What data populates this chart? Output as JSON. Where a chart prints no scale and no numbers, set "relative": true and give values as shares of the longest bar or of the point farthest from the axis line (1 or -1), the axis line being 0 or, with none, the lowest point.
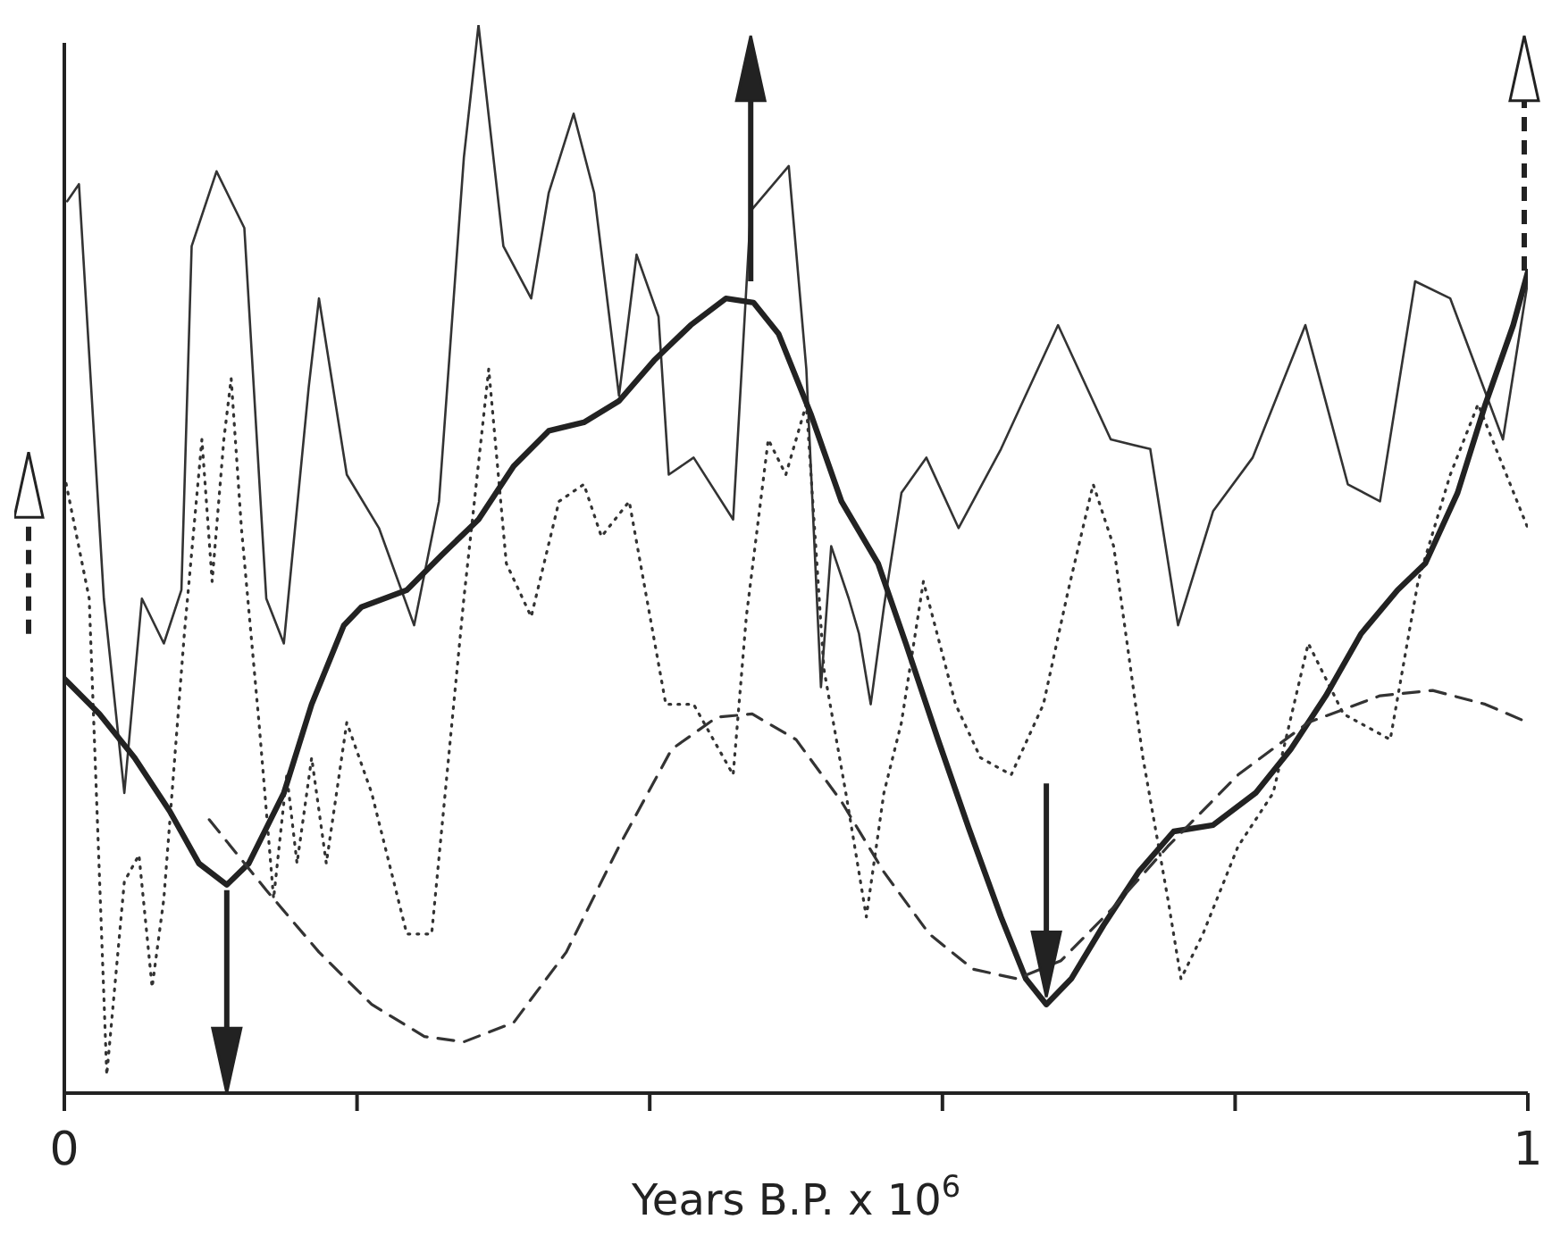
{
  "chart_data": {
    "type": "line",
    "relative": true,
    "xlabel": "Years B.P. x 10$^{6}$",
    "xlim": [
      0,
      1
    ],
    "xticks": [
      0,
      {
        "value": 0.2,
        "label": null
      },
      {
        "value": 0.4,
        "label": null
      },
      {
        "value": 0.6,
        "label": null
      },
      {
        "value": 0.8,
        "label": null
      },
      1
    ],
    "marker": "none",
    "legend": false,
    "series": [
      {
        "color": "#333333",
        "line_style": "solid",
        "x": [
          0.002,
          0.01,
          0.027,
          0.041,
          0.053,
          0.068,
          0.08,
          0.087,
          0.104,
          0.123,
          0.138,
          0.15,
          0.167,
          0.174,
          0.193,
          0.215,
          0.239,
          0.256,
          0.273,
          0.283,
          0.3,
          0.319,
          0.331,
          0.348,
          0.362,
          0.379,
          0.391,
          0.406,
          0.413,
          0.43,
          0.457,
          0.469,
          0.495,
          0.507,
          0.517,
          0.524,
          0.536,
          0.543,
          0.551,
          0.56,
          0.572,
          0.589,
          0.611,
          0.64,
          0.679,
          0.715,
          0.742,
          0.761,
          0.785,
          0.812,
          0.848,
          0.877,
          0.899,
          0.923,
          0.947,
          0.983,
          1.0
        ],
        "values": [
          0.835,
          0.851,
          0.463,
          0.281,
          0.463,
          0.421,
          0.471,
          0.793,
          0.863,
          0.81,
          0.463,
          0.421,
          0.661,
          0.744,
          0.579,
          0.529,
          0.438,
          0.554,
          0.876,
          1,
          0.793,
          0.744,
          0.843,
          0.917,
          0.843,
          0.653,
          0.785,
          0.727,
          0.579,
          0.595,
          0.537,
          0.826,
          0.868,
          0.678,
          0.38,
          0.512,
          0.463,
          0.43,
          0.364,
          0.455,
          0.562,
          0.595,
          0.529,
          0.603,
          0.719,
          0.612,
          0.603,
          0.438,
          0.545,
          0.595,
          0.719,
          0.57,
          0.554,
          0.76,
          0.744,
          0.612,
          0.76
        ]
      },
      {
        "color": "#333333",
        "line_style": "dotted",
        "x": [
          0,
          0.017,
          0.029,
          0.041,
          0.051,
          0.06,
          0.068,
          0.082,
          0.094,
          0.101,
          0.109,
          0.114,
          0.121,
          0.133,
          0.143,
          0.152,
          0.159,
          0.169,
          0.179,
          0.193,
          0.21,
          0.234,
          0.251,
          0.273,
          0.29,
          0.302,
          0.319,
          0.338,
          0.355,
          0.367,
          0.386,
          0.411,
          0.43,
          0.457,
          0.466,
          0.481,
          0.493,
          0.507,
          0.519,
          0.534,
          0.548,
          0.56,
          0.572,
          0.587,
          0.609,
          0.626,
          0.647,
          0.669,
          0.686,
          0.703,
          0.717,
          0.737,
          0.754,
          0.763,
          0.778,
          0.802,
          0.826,
          0.85,
          0.874,
          0.906,
          0.925,
          0.947,
          0.966,
          0.983,
          1
        ],
        "values": [
          0.579,
          0.463,
          0.017,
          0.198,
          0.223,
          0.099,
          0.182,
          0.43,
          0.612,
          0.479,
          0.612,
          0.669,
          0.529,
          0.347,
          0.182,
          0.298,
          0.215,
          0.314,
          0.215,
          0.347,
          0.281,
          0.149,
          0.149,
          0.463,
          0.678,
          0.496,
          0.446,
          0.554,
          0.57,
          0.521,
          0.554,
          0.364,
          0.364,
          0.298,
          0.446,
          0.612,
          0.579,
          0.645,
          0.397,
          0.281,
          0.165,
          0.281,
          0.347,
          0.479,
          0.364,
          0.314,
          0.298,
          0.364,
          0.471,
          0.57,
          0.512,
          0.314,
          0.182,
          0.107,
          0.149,
          0.231,
          0.281,
          0.421,
          0.355,
          0.331,
          0.479,
          0.579,
          0.645,
          0.587,
          0.529
        ]
      },
      {
        "color": "#222222",
        "line_style": "solid",
        "x": [
          0,
          0.024,
          0.048,
          0.072,
          0.092,
          0.111,
          0.126,
          0.15,
          0.169,
          0.191,
          0.203,
          0.234,
          0.258,
          0.283,
          0.307,
          0.331,
          0.355,
          0.379,
          0.403,
          0.428,
          0.452,
          0.471,
          0.488,
          0.51,
          0.531,
          0.556,
          0.575,
          0.597,
          0.618,
          0.64,
          0.657,
          0.671,
          0.688,
          0.71,
          0.734,
          0.758,
          0.785,
          0.814,
          0.838,
          0.862,
          0.886,
          0.911,
          0.93,
          0.952,
          0.971,
          0.99,
          1
        ],
        "values": [
          0.388,
          0.355,
          0.314,
          0.264,
          0.215,
          0.195,
          0.215,
          0.281,
          0.364,
          0.438,
          0.455,
          0.471,
          0.504,
          0.537,
          0.587,
          0.62,
          0.628,
          0.648,
          0.686,
          0.719,
          0.744,
          0.74,
          0.711,
          0.636,
          0.554,
          0.496,
          0.421,
          0.331,
          0.248,
          0.165,
          0.107,
          0.083,
          0.107,
          0.157,
          0.207,
          0.245,
          0.251,
          0.281,
          0.322,
          0.372,
          0.43,
          0.471,
          0.496,
          0.562,
          0.645,
          0.719,
          0.769
        ]
      },
      {
        "color": "#333333",
        "line_style": "dashed",
        "x": [
          0.099,
          0.138,
          0.174,
          0.21,
          0.246,
          0.273,
          0.307,
          0.343,
          0.379,
          0.415,
          0.446,
          0.47,
          0.5,
          0.531,
          0.56,
          0.591,
          0.621,
          0.651,
          0.681,
          0.717,
          0.754,
          0.802,
          0.85,
          0.899,
          0.935,
          0.971,
          1
        ],
        "values": [
          0.256,
          0.19,
          0.132,
          0.083,
          0.053,
          0.048,
          0.066,
          0.132,
          0.231,
          0.322,
          0.352,
          0.355,
          0.331,
          0.273,
          0.207,
          0.149,
          0.116,
          0.107,
          0.124,
          0.174,
          0.231,
          0.298,
          0.347,
          0.372,
          0.377,
          0.364,
          0.347
        ]
      }
    ]
  }
}
